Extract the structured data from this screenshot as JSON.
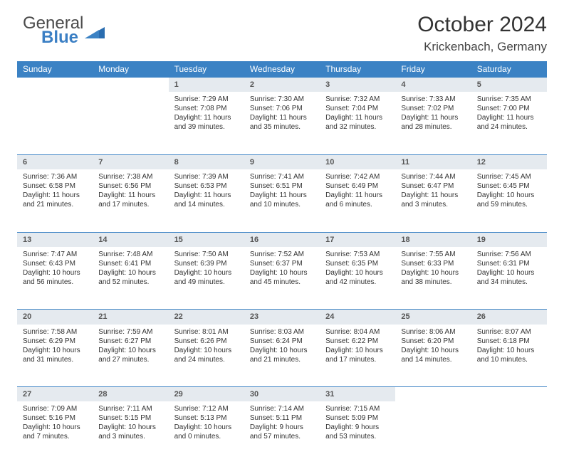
{
  "logo": {
    "line1": "General",
    "line2": "Blue"
  },
  "title": "October 2024",
  "location": "Krickenbach, Germany",
  "colors": {
    "header_bg": "#3b82c4",
    "header_text": "#ffffff",
    "daynum_bg": "#e5eaef",
    "border": "#3b82c4",
    "text": "#333333",
    "logo_accent": "#3b7fc4"
  },
  "typography": {
    "title_fontsize": 30,
    "location_fontsize": 17,
    "header_fontsize": 12,
    "cell_fontsize": 10
  },
  "dayHeaders": [
    "Sunday",
    "Monday",
    "Tuesday",
    "Wednesday",
    "Thursday",
    "Friday",
    "Saturday"
  ],
  "weeks": [
    [
      null,
      null,
      {
        "n": "1",
        "sr": "Sunrise: 7:29 AM",
        "ss": "Sunset: 7:08 PM",
        "d1": "Daylight: 11 hours",
        "d2": "and 39 minutes."
      },
      {
        "n": "2",
        "sr": "Sunrise: 7:30 AM",
        "ss": "Sunset: 7:06 PM",
        "d1": "Daylight: 11 hours",
        "d2": "and 35 minutes."
      },
      {
        "n": "3",
        "sr": "Sunrise: 7:32 AM",
        "ss": "Sunset: 7:04 PM",
        "d1": "Daylight: 11 hours",
        "d2": "and 32 minutes."
      },
      {
        "n": "4",
        "sr": "Sunrise: 7:33 AM",
        "ss": "Sunset: 7:02 PM",
        "d1": "Daylight: 11 hours",
        "d2": "and 28 minutes."
      },
      {
        "n": "5",
        "sr": "Sunrise: 7:35 AM",
        "ss": "Sunset: 7:00 PM",
        "d1": "Daylight: 11 hours",
        "d2": "and 24 minutes."
      }
    ],
    [
      {
        "n": "6",
        "sr": "Sunrise: 7:36 AM",
        "ss": "Sunset: 6:58 PM",
        "d1": "Daylight: 11 hours",
        "d2": "and 21 minutes."
      },
      {
        "n": "7",
        "sr": "Sunrise: 7:38 AM",
        "ss": "Sunset: 6:56 PM",
        "d1": "Daylight: 11 hours",
        "d2": "and 17 minutes."
      },
      {
        "n": "8",
        "sr": "Sunrise: 7:39 AM",
        "ss": "Sunset: 6:53 PM",
        "d1": "Daylight: 11 hours",
        "d2": "and 14 minutes."
      },
      {
        "n": "9",
        "sr": "Sunrise: 7:41 AM",
        "ss": "Sunset: 6:51 PM",
        "d1": "Daylight: 11 hours",
        "d2": "and 10 minutes."
      },
      {
        "n": "10",
        "sr": "Sunrise: 7:42 AM",
        "ss": "Sunset: 6:49 PM",
        "d1": "Daylight: 11 hours",
        "d2": "and 6 minutes."
      },
      {
        "n": "11",
        "sr": "Sunrise: 7:44 AM",
        "ss": "Sunset: 6:47 PM",
        "d1": "Daylight: 11 hours",
        "d2": "and 3 minutes."
      },
      {
        "n": "12",
        "sr": "Sunrise: 7:45 AM",
        "ss": "Sunset: 6:45 PM",
        "d1": "Daylight: 10 hours",
        "d2": "and 59 minutes."
      }
    ],
    [
      {
        "n": "13",
        "sr": "Sunrise: 7:47 AM",
        "ss": "Sunset: 6:43 PM",
        "d1": "Daylight: 10 hours",
        "d2": "and 56 minutes."
      },
      {
        "n": "14",
        "sr": "Sunrise: 7:48 AM",
        "ss": "Sunset: 6:41 PM",
        "d1": "Daylight: 10 hours",
        "d2": "and 52 minutes."
      },
      {
        "n": "15",
        "sr": "Sunrise: 7:50 AM",
        "ss": "Sunset: 6:39 PM",
        "d1": "Daylight: 10 hours",
        "d2": "and 49 minutes."
      },
      {
        "n": "16",
        "sr": "Sunrise: 7:52 AM",
        "ss": "Sunset: 6:37 PM",
        "d1": "Daylight: 10 hours",
        "d2": "and 45 minutes."
      },
      {
        "n": "17",
        "sr": "Sunrise: 7:53 AM",
        "ss": "Sunset: 6:35 PM",
        "d1": "Daylight: 10 hours",
        "d2": "and 42 minutes."
      },
      {
        "n": "18",
        "sr": "Sunrise: 7:55 AM",
        "ss": "Sunset: 6:33 PM",
        "d1": "Daylight: 10 hours",
        "d2": "and 38 minutes."
      },
      {
        "n": "19",
        "sr": "Sunrise: 7:56 AM",
        "ss": "Sunset: 6:31 PM",
        "d1": "Daylight: 10 hours",
        "d2": "and 34 minutes."
      }
    ],
    [
      {
        "n": "20",
        "sr": "Sunrise: 7:58 AM",
        "ss": "Sunset: 6:29 PM",
        "d1": "Daylight: 10 hours",
        "d2": "and 31 minutes."
      },
      {
        "n": "21",
        "sr": "Sunrise: 7:59 AM",
        "ss": "Sunset: 6:27 PM",
        "d1": "Daylight: 10 hours",
        "d2": "and 27 minutes."
      },
      {
        "n": "22",
        "sr": "Sunrise: 8:01 AM",
        "ss": "Sunset: 6:26 PM",
        "d1": "Daylight: 10 hours",
        "d2": "and 24 minutes."
      },
      {
        "n": "23",
        "sr": "Sunrise: 8:03 AM",
        "ss": "Sunset: 6:24 PM",
        "d1": "Daylight: 10 hours",
        "d2": "and 21 minutes."
      },
      {
        "n": "24",
        "sr": "Sunrise: 8:04 AM",
        "ss": "Sunset: 6:22 PM",
        "d1": "Daylight: 10 hours",
        "d2": "and 17 minutes."
      },
      {
        "n": "25",
        "sr": "Sunrise: 8:06 AM",
        "ss": "Sunset: 6:20 PM",
        "d1": "Daylight: 10 hours",
        "d2": "and 14 minutes."
      },
      {
        "n": "26",
        "sr": "Sunrise: 8:07 AM",
        "ss": "Sunset: 6:18 PM",
        "d1": "Daylight: 10 hours",
        "d2": "and 10 minutes."
      }
    ],
    [
      {
        "n": "27",
        "sr": "Sunrise: 7:09 AM",
        "ss": "Sunset: 5:16 PM",
        "d1": "Daylight: 10 hours",
        "d2": "and 7 minutes."
      },
      {
        "n": "28",
        "sr": "Sunrise: 7:11 AM",
        "ss": "Sunset: 5:15 PM",
        "d1": "Daylight: 10 hours",
        "d2": "and 3 minutes."
      },
      {
        "n": "29",
        "sr": "Sunrise: 7:12 AM",
        "ss": "Sunset: 5:13 PM",
        "d1": "Daylight: 10 hours",
        "d2": "and 0 minutes."
      },
      {
        "n": "30",
        "sr": "Sunrise: 7:14 AM",
        "ss": "Sunset: 5:11 PM",
        "d1": "Daylight: 9 hours",
        "d2": "and 57 minutes."
      },
      {
        "n": "31",
        "sr": "Sunrise: 7:15 AM",
        "ss": "Sunset: 5:09 PM",
        "d1": "Daylight: 9 hours",
        "d2": "and 53 minutes."
      },
      null,
      null
    ]
  ]
}
